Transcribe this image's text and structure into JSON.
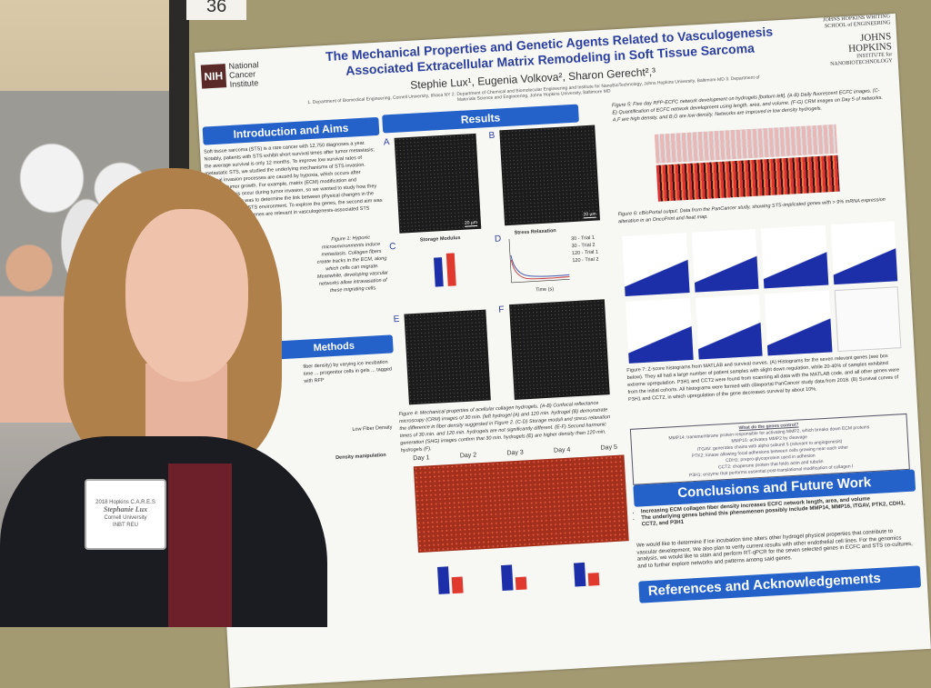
{
  "sign": {
    "number": "36"
  },
  "poster": {
    "title_line1": "The Mechanical Properties and Genetic Agents Related to Vasculogenesis",
    "title_line2": "Associated Extracellular Matrix Remodeling in Soft Tissue Sarcoma",
    "authors": "Stephie Lux¹, Eugenia Volkova², Sharon Gerecht²,³",
    "affiliations": "1. Department of Biomedical Engineering, Cornell University, Ithaca NY 2. Department of Chemical and Biomolecular Engineering and Institute for NanoBioTechnology, Johns Hopkins University, Baltimore MD 3. Department of Materials Science and Engineering, Johns Hopkins University, Baltimore MD",
    "nih_logo": "NIH",
    "nih_text": "National Cancer Institute",
    "jhu_logo_top": "JOHNS HOPKINS WHITING SCHOOL of ENGINEERING",
    "jhu_logo": "JOHNS HOPKINS",
    "jhu_logo_sub": "INSTITUTE for NANOBIOTECHNOLOGY",
    "sections": {
      "intro": "Introduction and Aims",
      "results": "Results",
      "methods": "Methods",
      "conclusions": "Conclusions and Future Work",
      "references": "References and Acknowledgements"
    },
    "intro_text": "Soft tissue sarcoma (STS) is a rare cancer with 12,750 diagnoses a year. Notably, patients with STS exhibit short survival times after tumor metastasis; the average survival is only 12 months. To improve low survival rates of metastatic STS, we studied the underlying mechanisms of STS invasion. Several invasion processes are caused by hypoxia, which occurs after sufficient tumor growth. For example, matrix (ECM) modification and vasculogenesis occur during tumor invasion, so we wanted to study how they interact. Our aim was to determine the link between physical changes in the ECM in an in vitro STS environment. To explore the genes, the second aim was to determine which genes are relevant in vasculogenesis-associated STS pathways.",
    "fig1_caption": "Figure 1: Hypoxic microenvironments induce metastasis. Collagen fibers create tracks in the ECM, along which cells can migrate. Meanwhile, developing vascular networks allow intravasation of these migrating cells.",
    "methods_text": "fiber density) by varying ice incubation time ... progenitor cells in gels ... tagged with RFP",
    "methods_labels": [
      "Low Fiber Density",
      "Density manipulation"
    ],
    "panel_labels": [
      "A",
      "B",
      "C",
      "D",
      "E",
      "F"
    ],
    "scale_bar": "20 µm",
    "chart_c_title": "Storage Modulus",
    "chart_d_title": "Stress Relaxation",
    "chart_d_xlabel": "Time (s)",
    "chart_d_legend": [
      "30 - Trial 1",
      "30 - Trial 2",
      "120 - Trial 1",
      "120 - Trial 2"
    ],
    "fig4_caption": "Figure 4: Mechanical properties of acellular collagen hydrogels. (A-B) Confocal reflectance microscopy (CRM) images of 30 min. (left hydrogel (A) and 120 min. hydrogel (B) demonstrate the difference in fiber density suggested in Figure 2. (C-D) Storage moduli and stress relaxation times of 30 min. and 120 min. hydrogels are not significantly different. (E-F) Second harmonic generation (SHG) images confirm that 30 min. hydrogels (E) are higher density than 120 min. hydrogels (F).",
    "days": [
      "Day 1",
      "Day 2",
      "Day 3",
      "Day 4",
      "Day 5"
    ],
    "fig5_caption": "Figure 5: Five day RFP-ECFC network development on hydrogels [bottom left]. (A-B) Daily fluorescent ECFC images. (C-E) Quantification of ECFC network development using length, area, and volume. (F-G) CRM images on Day 5 of networks. A,F are high density, and B,G are low density. Networks are improved in low density hydrogels.",
    "fig6_caption": "Figure 6: cBioPortal output. Data from the PanCancer study, showing STS-implicated genes with > 9% mRNA expression alteration in an OncoPrint and heat map.",
    "fig7_caption": "Figure 7: Z-score histograms from MATLAB and survival curves. (A) Histograms for the seven relevant genes (see box below). They all had a large number of patient samples with slight down regulation, while 20-40% of samples exhibited extreme upregulation. P3H1 and CCT2 were found from scanning all data with the MATLAB code, and all other genes were from the initial cohorts. All histograms were formed with cBioportal PanCancer study data from 2018. (B) Survival curves of P3H1 and CCT2, in which upregulation of the gene decreases survival by about 10%.",
    "genes_title": "What do the genes control?",
    "genes": [
      "MMP14: transmembrane protein responsible for activating MMP2, which breaks down ECM proteins",
      "MMP16: activates MMP2 by cleavage",
      "ITGAV: generates chains with alpha subunit 5 (relevant to angiogenesis)",
      "PTK2: kinase allowing focal adhesions between cells growing near each other",
      "CDH1: prepro-glycoprotein used in adhesion",
      "CCT2: chaperone protein that folds actin and tubulin",
      "P3H1: enzyme that performs essential post-translational modification of collagen I"
    ],
    "conclusions": [
      "Increasing ECM collagen fiber density increases ECFC network length, area, and volume",
      "The underlying genes behind this phenomenon possibly include MMP14, MMP16, ITGAV, PTK2, CDH1, CCT2, and P3H1"
    ],
    "future_work": "We would like to determine if ice incubation time alters other hydrogel physical properties that contribute to vascular development. We also plan to verify current results with other endothelial cell lines. For the genomics analysis, we would like to stain and perform RT-qPCR for the seven selected genes in ECFC and STS co-cultures, and to further explore networks and patterns among said genes."
  },
  "badge": {
    "event": "2018 Hopkins C.A.R.E.S",
    "name": "Stephanie Lux",
    "school": "Cornell University",
    "program": "INBT REU"
  },
  "colors": {
    "poster_blue": "#2462c9",
    "title_blue": "#2b3f9e",
    "board": "#a39a72"
  }
}
